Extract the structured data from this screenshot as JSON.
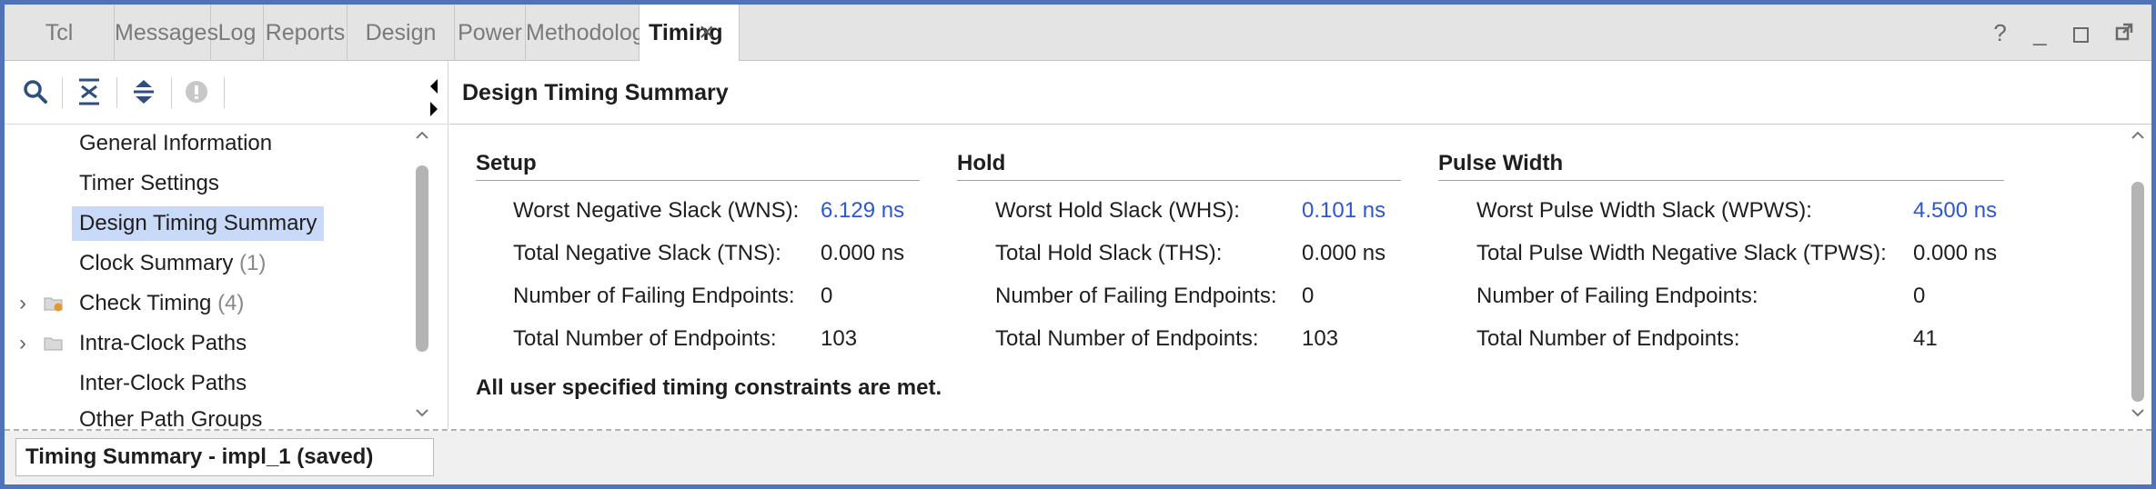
{
  "tabs": [
    {
      "label": "Tcl Console"
    },
    {
      "label": "Messages"
    },
    {
      "label": "Log"
    },
    {
      "label": "Reports"
    },
    {
      "label": "Design Runs"
    },
    {
      "label": "Power"
    },
    {
      "label": "Methodology"
    },
    {
      "label": "Timing",
      "active": true
    }
  ],
  "tab_close_glyph": "×",
  "window_controls": {
    "help": "?",
    "minimize": "_"
  },
  "tree": [
    {
      "label": "General Information"
    },
    {
      "label": "Timer Settings"
    },
    {
      "label": "Design Timing Summary",
      "selected": true
    },
    {
      "label": "Clock Summary",
      "count": "(1)"
    },
    {
      "label": "Check Timing",
      "count": "(4)",
      "expandable": true,
      "icon": "warning-folder-icon"
    },
    {
      "label": "Intra-Clock Paths",
      "expandable": true,
      "icon": "folder-icon"
    },
    {
      "label": "Inter-Clock Paths"
    },
    {
      "label": "Other Path Groups"
    }
  ],
  "main": {
    "title": "Design Timing Summary",
    "setup": {
      "heading": "Setup",
      "rows": [
        {
          "label": "Worst Negative Slack (WNS):",
          "value": "6.129 ns",
          "link": true
        },
        {
          "label": "Total Negative Slack (TNS):",
          "value": "0.000 ns"
        },
        {
          "label": "Number of Failing Endpoints:",
          "value": "0"
        },
        {
          "label": "Total Number of Endpoints:",
          "value": "103"
        }
      ]
    },
    "hold": {
      "heading": "Hold",
      "rows": [
        {
          "label": "Worst Hold Slack (WHS):",
          "value": "0.101 ns",
          "link": true
        },
        {
          "label": "Total Hold Slack (THS):",
          "value": "0.000 ns"
        },
        {
          "label": "Number of Failing Endpoints:",
          "value": "0"
        },
        {
          "label": "Total Number of Endpoints:",
          "value": "103"
        }
      ]
    },
    "pulse": {
      "heading": "Pulse Width",
      "rows": [
        {
          "label": "Worst Pulse Width Slack (WPWS):",
          "value": "4.500 ns",
          "link": true
        },
        {
          "label": "Total Pulse Width Negative Slack (TPWS):",
          "value": "0.000 ns"
        },
        {
          "label": "Number of Failing Endpoints:",
          "value": "0"
        },
        {
          "label": "Total Number of Endpoints:",
          "value": "41"
        }
      ]
    },
    "message": "All user specified timing constraints are met."
  },
  "status": {
    "label": "Timing Summary - impl_1 (saved)"
  },
  "colors": {
    "accent_border": "#4e73b9",
    "link": "#2c57d2",
    "selection": "#c9daf8"
  }
}
